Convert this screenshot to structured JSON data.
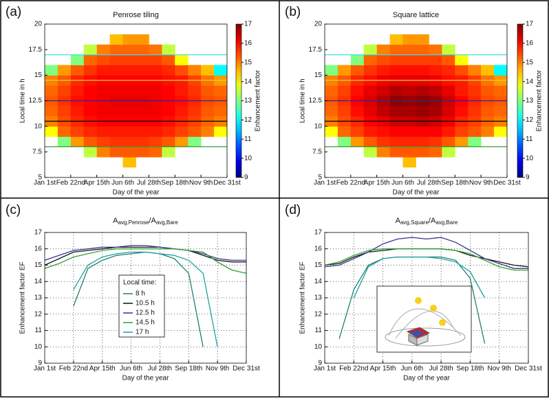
{
  "chart_data": [
    {
      "type": "heatmap",
      "panel_label": "(a)",
      "title": "Penrose tiling",
      "xlabel": "Day of the year",
      "ylabel": "Local time in h",
      "colorbar_label": "Enhancement factor",
      "xlim": [
        1,
        365
      ],
      "xticks": [
        {
          "value": 1,
          "label": "Jan 1st"
        },
        {
          "value": 53,
          "label": "Feb 22nd"
        },
        {
          "value": 105,
          "label": "Apr 15th"
        },
        {
          "value": 157,
          "label": "Jun 6th"
        },
        {
          "value": 209,
          "label": "Jul 28th"
        },
        {
          "value": 261,
          "label": "Sep 18th"
        },
        {
          "value": 313,
          "label": "Nov 9th"
        },
        {
          "value": 365,
          "label": "Dec 31st"
        }
      ],
      "ylim": [
        5,
        20
      ],
      "yticks": [
        5,
        7.5,
        10,
        12.5,
        15,
        17.5,
        20
      ],
      "zlim": [
        9,
        17
      ],
      "cticks": [
        9,
        10,
        11,
        12,
        13,
        14,
        15,
        16,
        17
      ],
      "x_bins": [
        1,
        27,
        53,
        79,
        105,
        131,
        157,
        183,
        209,
        235,
        261,
        287,
        313,
        339,
        365
      ],
      "y_bins": [
        5,
        6,
        7,
        8,
        9,
        10,
        11,
        12,
        13,
        14,
        15,
        16,
        17,
        18,
        19,
        20
      ],
      "z": [
        [
          null,
          null,
          null,
          null,
          null,
          null,
          null,
          null,
          null,
          null,
          null,
          null,
          null,
          null
        ],
        [
          null,
          null,
          null,
          null,
          null,
          null,
          14.5,
          null,
          null,
          null,
          null,
          null,
          null,
          null
        ],
        [
          null,
          null,
          null,
          13.5,
          15,
          15.3,
          15.3,
          15.3,
          15.2,
          13.5,
          null,
          null,
          null,
          null
        ],
        [
          null,
          13,
          14.8,
          15.3,
          15.5,
          15.6,
          15.6,
          15.6,
          15.5,
          15.3,
          14.8,
          13,
          null,
          null
        ],
        [
          14,
          15.2,
          15.5,
          15.7,
          15.8,
          15.8,
          15.8,
          15.8,
          15.8,
          15.7,
          15.5,
          15.3,
          15,
          14
        ],
        [
          15,
          15.4,
          15.7,
          15.9,
          16,
          16,
          16,
          16,
          16,
          15.9,
          15.7,
          15.5,
          15.2,
          15
        ],
        [
          15.2,
          15.5,
          15.8,
          16,
          16.1,
          16.1,
          16.1,
          16.1,
          16.1,
          16,
          15.8,
          15.6,
          15.3,
          15.2
        ],
        [
          15.3,
          15.6,
          15.9,
          16,
          16.1,
          16.2,
          16.2,
          16.2,
          16.1,
          16,
          15.9,
          15.7,
          15.4,
          15.3
        ],
        [
          15.2,
          15.5,
          15.8,
          16,
          16.1,
          16.1,
          16.1,
          16.1,
          16.1,
          16,
          15.8,
          15.6,
          15.3,
          15.2
        ],
        [
          15,
          15.3,
          15.7,
          15.9,
          16,
          16,
          16,
          16,
          16,
          15.9,
          15.8,
          15.5,
          15.1,
          14.8
        ],
        [
          13,
          14.8,
          15.3,
          15.6,
          15.8,
          15.8,
          15.8,
          15.8,
          15.8,
          15.7,
          15.4,
          15,
          14.5,
          12
        ],
        [
          null,
          null,
          13,
          15.2,
          15.4,
          15.5,
          15.5,
          15.5,
          15.5,
          15.3,
          14,
          null,
          null,
          null
        ],
        [
          null,
          null,
          null,
          13.5,
          15,
          15.2,
          15.2,
          15.2,
          15.1,
          13.5,
          null,
          null,
          null,
          null
        ],
        [
          null,
          null,
          null,
          null,
          null,
          14.5,
          14.8,
          14.8,
          null,
          null,
          null,
          null,
          null,
          null
        ],
        [
          null,
          null,
          null,
          null,
          null,
          null,
          null,
          null,
          null,
          null,
          null,
          null,
          null,
          null
        ]
      ],
      "marker_lines": [
        {
          "value": 8,
          "color": "#3a9a3a"
        },
        {
          "value": 10.5,
          "color": "#000000"
        },
        {
          "value": 12.5,
          "color": "#2a2a8a"
        },
        {
          "value": 14.5,
          "color": "#e0d040"
        },
        {
          "value": 17,
          "color": "#40e0e0"
        }
      ]
    },
    {
      "type": "heatmap",
      "panel_label": "(b)",
      "title": "Square lattice",
      "xlabel": "Day of the year",
      "ylabel": "Local time in h",
      "colorbar_label": "Enhancement factor",
      "xlim": [
        1,
        365
      ],
      "xticks": [
        {
          "value": 1,
          "label": "Jan 1st"
        },
        {
          "value": 53,
          "label": "Feb 22nd"
        },
        {
          "value": 105,
          "label": "Apr 15th"
        },
        {
          "value": 157,
          "label": "Jun 6th"
        },
        {
          "value": 209,
          "label": "Jul 28th"
        },
        {
          "value": 261,
          "label": "Sep 18th"
        },
        {
          "value": 313,
          "label": "Nov 9th"
        },
        {
          "value": 365,
          "label": "Dec 31st"
        }
      ],
      "ylim": [
        5,
        20
      ],
      "yticks": [
        5,
        7.5,
        10,
        12.5,
        15,
        17.5,
        20
      ],
      "zlim": [
        9,
        17
      ],
      "cticks": [
        9,
        10,
        11,
        12,
        13,
        14,
        15,
        16,
        17
      ],
      "x_bins": [
        1,
        27,
        53,
        79,
        105,
        131,
        157,
        183,
        209,
        235,
        261,
        287,
        313,
        339,
        365
      ],
      "y_bins": [
        5,
        6,
        7,
        8,
        9,
        10,
        11,
        12,
        13,
        14,
        15,
        16,
        17,
        18,
        19,
        20
      ],
      "z": [
        [
          null,
          null,
          null,
          null,
          null,
          null,
          null,
          null,
          null,
          null,
          null,
          null,
          null,
          null
        ],
        [
          null,
          null,
          null,
          null,
          null,
          null,
          14.5,
          null,
          null,
          null,
          null,
          null,
          null,
          null
        ],
        [
          null,
          null,
          null,
          13.5,
          15,
          15.3,
          15.3,
          15.3,
          15.2,
          13.5,
          null,
          null,
          null,
          null
        ],
        [
          null,
          13,
          14.8,
          15.3,
          15.6,
          15.7,
          15.7,
          15.7,
          15.6,
          15.3,
          14.8,
          13,
          null,
          null
        ],
        [
          14,
          15.2,
          15.5,
          15.8,
          15.9,
          16,
          16,
          16,
          16,
          15.8,
          15.5,
          15.3,
          15,
          14
        ],
        [
          15,
          15.4,
          15.7,
          16,
          16.2,
          16.4,
          16.4,
          16.5,
          16.4,
          16.1,
          15.7,
          15.5,
          15.2,
          15
        ],
        [
          15.2,
          15.5,
          15.9,
          16.2,
          16.5,
          16.7,
          16.7,
          16.8,
          16.7,
          16.3,
          15.9,
          15.6,
          15.3,
          15.2
        ],
        [
          15.3,
          15.6,
          16,
          16.3,
          16.6,
          16.9,
          16.8,
          16.9,
          16.8,
          16.4,
          16,
          15.7,
          15.4,
          15.3
        ],
        [
          15.2,
          15.5,
          15.9,
          16.2,
          16.4,
          16.6,
          16.5,
          16.6,
          16.5,
          16.2,
          15.8,
          15.6,
          15.3,
          15.2
        ],
        [
          15,
          15.3,
          15.7,
          15.9,
          16.1,
          16.2,
          16.2,
          16.2,
          16.1,
          15.9,
          15.8,
          15.5,
          15.1,
          14.8
        ],
        [
          13,
          14.8,
          15.3,
          15.6,
          15.8,
          15.9,
          15.9,
          15.9,
          15.8,
          15.7,
          15.4,
          15,
          14.5,
          12
        ],
        [
          null,
          null,
          13,
          15.2,
          15.4,
          15.5,
          15.5,
          15.5,
          15.5,
          15.3,
          14,
          null,
          null,
          null
        ],
        [
          null,
          null,
          null,
          13.5,
          15,
          15.2,
          15.2,
          15.2,
          15.1,
          13.5,
          null,
          null,
          null,
          null
        ],
        [
          null,
          null,
          null,
          null,
          null,
          14.5,
          14.8,
          14.8,
          null,
          null,
          null,
          null,
          null,
          null
        ],
        [
          null,
          null,
          null,
          null,
          null,
          null,
          null,
          null,
          null,
          null,
          null,
          null,
          null,
          null
        ]
      ],
      "marker_lines": [
        {
          "value": 8,
          "color": "#3a9a3a"
        },
        {
          "value": 10.5,
          "color": "#000000"
        },
        {
          "value": 12.5,
          "color": "#2a2a8a"
        },
        {
          "value": 14.5,
          "color": "#e0d040"
        },
        {
          "value": 17,
          "color": "#40e0e0"
        }
      ]
    },
    {
      "type": "line",
      "panel_label": "(c)",
      "title_parts": [
        "A",
        "avg,Penrose",
        "/A",
        "avg,Bare"
      ],
      "xlabel": "Day of the year",
      "ylabel": "Enhancement factor EF",
      "legend_title": "Local time:",
      "grid": true,
      "xlim": [
        1,
        365
      ],
      "xticks": [
        {
          "value": 1,
          "label": "Jan 1st"
        },
        {
          "value": 53,
          "label": "Feb 22nd"
        },
        {
          "value": 105,
          "label": "Apr 15th"
        },
        {
          "value": 157,
          "label": "Jun 6th"
        },
        {
          "value": 209,
          "label": "Jul 28th"
        },
        {
          "value": 261,
          "label": "Sep 18th"
        },
        {
          "value": 313,
          "label": "Nov 9th"
        },
        {
          "value": 365,
          "label": "Dec 31st"
        }
      ],
      "ylim": [
        9,
        17
      ],
      "yticks": [
        9,
        10,
        11,
        12,
        13,
        14,
        15,
        16,
        17
      ],
      "x": [
        1,
        27,
        53,
        79,
        105,
        131,
        157,
        183,
        209,
        235,
        261,
        287,
        313,
        339,
        365
      ],
      "series": [
        {
          "name": "8 h",
          "color": "#1f7f6f",
          "values": [
            null,
            null,
            12.5,
            14.8,
            15.3,
            15.6,
            15.7,
            15.8,
            15.7,
            15.4,
            14.5,
            10,
            null,
            null,
            null
          ]
        },
        {
          "name": "10.5 h",
          "color": "#111111",
          "values": [
            15,
            15.4,
            15.8,
            15.9,
            16,
            16.1,
            16.1,
            16.1,
            16.1,
            16,
            15.9,
            15.6,
            15.3,
            15.2,
            15.2
          ]
        },
        {
          "name": "12.5 h",
          "color": "#33338f",
          "values": [
            15.3,
            15.6,
            15.9,
            16,
            16.1,
            16.1,
            16.2,
            16.2,
            16.1,
            16,
            15.9,
            15.7,
            15.4,
            15.3,
            15.3
          ]
        },
        {
          "name": "14.5 h",
          "color": "#2f9f2f",
          "values": [
            14.8,
            15.1,
            15.5,
            15.7,
            15.9,
            16,
            16,
            16,
            16,
            16,
            15.9,
            15.8,
            15.2,
            14.7,
            14.5
          ]
        },
        {
          "name": "17 h",
          "color": "#1aa0a0",
          "values": [
            null,
            null,
            13.5,
            15,
            15.5,
            15.7,
            15.8,
            15.8,
            15.7,
            15.6,
            15.3,
            14.5,
            10,
            null,
            null
          ]
        }
      ]
    },
    {
      "type": "line",
      "panel_label": "(d)",
      "title_parts": [
        "A",
        "avg,Square",
        "/A",
        "avg,Bare"
      ],
      "xlabel": "Day of the year",
      "ylabel": "Enhancement factor EF",
      "grid": true,
      "xlim": [
        1,
        365
      ],
      "xticks": [
        {
          "value": 1,
          "label": "Jan 1st"
        },
        {
          "value": 53,
          "label": "Feb 22nd"
        },
        {
          "value": 105,
          "label": "Apr 15th"
        },
        {
          "value": 157,
          "label": "Jun 6th"
        },
        {
          "value": 209,
          "label": "Jul 28th"
        },
        {
          "value": 261,
          "label": "Sep 18th"
        },
        {
          "value": 313,
          "label": "Nov 9th"
        },
        {
          "value": 365,
          "label": "Dec 31st"
        }
      ],
      "ylim": [
        9,
        17
      ],
      "yticks": [
        9,
        10,
        11,
        12,
        13,
        14,
        15,
        16,
        17
      ],
      "x": [
        1,
        27,
        53,
        79,
        105,
        131,
        157,
        183,
        209,
        235,
        261,
        287,
        313,
        339,
        365
      ],
      "series": [
        {
          "color": "#1f7f6f",
          "values": [
            null,
            10.5,
            13.5,
            15,
            15.4,
            15.5,
            15.5,
            15.5,
            15.5,
            15.3,
            14.2,
            10.2,
            null,
            null,
            null
          ]
        },
        {
          "color": "#111111",
          "values": [
            15,
            15.1,
            15.5,
            15.8,
            15.9,
            16,
            16,
            16,
            16,
            15.9,
            15.6,
            15.4,
            15.2,
            15,
            14.9
          ]
        },
        {
          "color": "#33338f",
          "values": [
            14.9,
            15,
            15.4,
            15.8,
            16.3,
            16.6,
            16.7,
            16.6,
            16.7,
            16.4,
            15.9,
            15.4,
            15.1,
            14.8,
            14.8
          ]
        },
        {
          "color": "#2f9f2f",
          "values": [
            15,
            15.2,
            15.6,
            15.9,
            16,
            16,
            16,
            16,
            16,
            15.9,
            15.7,
            15.3,
            14.9,
            14.7,
            14.7
          ]
        },
        {
          "color": "#1aa0a0",
          "values": [
            null,
            null,
            13,
            14.9,
            15.4,
            15.5,
            15.5,
            15.5,
            15.4,
            15.2,
            14.6,
            13,
            null,
            null,
            null
          ]
        }
      ]
    }
  ]
}
